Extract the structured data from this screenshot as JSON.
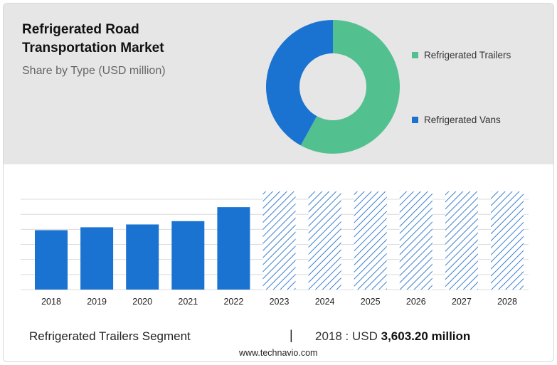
{
  "header": {
    "title_line1": "Refrigerated Road",
    "title_line2": "Transportation Market",
    "subtitle": "Share by Type (USD million)"
  },
  "colors": {
    "trailers": "#52c08f",
    "vans": "#1a73d1",
    "bar": "#1a73d1",
    "forecast_hatch": "#3a7fd0"
  },
  "chart_data": [
    {
      "type": "pie",
      "variant": "donut",
      "legend_position": "right",
      "series": [
        {
          "name": "Refrigerated Trailers",
          "value": 58
        },
        {
          "name": "Refrigerated Vans",
          "value": 42
        }
      ]
    },
    {
      "type": "bar",
      "categories": [
        "2018",
        "2019",
        "2020",
        "2021",
        "2022",
        "2023",
        "2024",
        "2025",
        "2026",
        "2027",
        "2028"
      ],
      "values": [
        3603.2,
        3780,
        3950,
        4150,
        5000,
        5950,
        5950,
        5950,
        5950,
        5950,
        5950
      ],
      "forecast": [
        false,
        false,
        false,
        false,
        false,
        true,
        true,
        true,
        true,
        true,
        true
      ],
      "ylim": [
        0,
        6300
      ],
      "grid": true,
      "ylabel": "",
      "xlabel": ""
    }
  ],
  "footer": {
    "segment_label": "Refrigerated Trailers Segment",
    "separator": "|",
    "value_prefix": "2018 : USD",
    "value_bold": "3,603.20 million",
    "source": "www.technavio.com"
  }
}
